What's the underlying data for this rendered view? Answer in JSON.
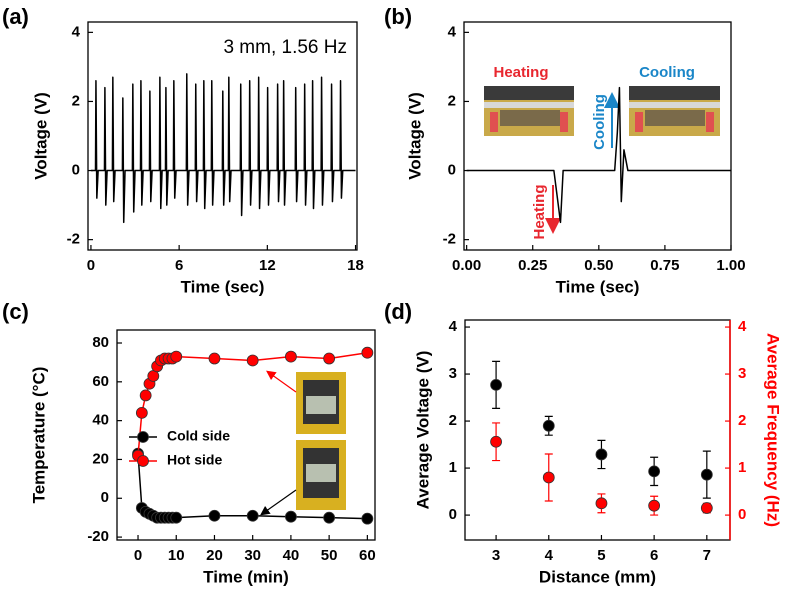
{
  "chart_data": [
    {
      "type": "line",
      "label": "(a)",
      "annotation": "3 mm, 1.56 Hz",
      "xlabel": "Time (sec)",
      "ylabel": "Voltage (V)",
      "color": "#000000",
      "x": [
        0,
        0.31,
        0.34,
        0.4,
        0.49,
        0.92,
        0.95,
        1.01,
        1.1,
        1.46,
        1.49,
        1.55,
        1.64,
        2.14,
        2.17,
        2.23,
        2.32,
        2.82,
        2.85,
        2.91,
        3.0,
        3.37,
        3.4,
        3.46,
        3.55,
        3.98,
        4.01,
        4.07,
        4.16,
        4.66,
        4.69,
        4.75,
        4.84,
        5.07,
        5.1,
        5.16,
        5.25,
        5.61,
        5.64,
        5.7,
        5.79,
        6.49,
        6.52,
        6.58,
        6.67,
        7.1,
        7.13,
        7.19,
        7.28,
        7.65,
        7.68,
        7.74,
        7.83,
        8.19,
        8.22,
        8.28,
        8.37,
        8.94,
        8.97,
        9.03,
        9.12,
        9.35,
        9.38,
        9.44,
        9.53,
        10.16,
        10.19,
        10.25,
        10.34,
        10.77,
        10.8,
        10.86,
        10.95,
        11.38,
        11.41,
        11.47,
        11.56,
        11.99,
        12.02,
        12.08,
        12.17,
        12.67,
        12.7,
        12.76,
        12.85,
        13.08,
        13.11,
        13.17,
        13.26,
        13.9,
        13.93,
        13.99,
        14.08,
        14.51,
        14.54,
        14.6,
        14.69,
        15.05,
        15.08,
        15.14,
        15.23,
        15.66,
        15.69,
        15.75,
        15.84,
        16.34,
        16.37,
        16.43,
        16.52,
        16.95,
        16.98,
        17.04,
        17.13,
        18
      ],
      "values": [
        0,
        0,
        2.6,
        -0.8,
        0,
        0,
        2.4,
        -1.0,
        0,
        0,
        2.7,
        -0.9,
        0,
        0,
        2.1,
        -1.5,
        0,
        0,
        2.5,
        -1.2,
        0,
        0,
        2.6,
        -1.0,
        0,
        0,
        2.3,
        -0.9,
        0,
        0,
        2.7,
        -1.1,
        0,
        0,
        2.4,
        -1.0,
        0,
        0,
        2.6,
        -0.8,
        0,
        0,
        2.8,
        -1.0,
        0,
        0,
        2.5,
        -0.9,
        0,
        0,
        2.6,
        -1.1,
        0,
        0,
        2.6,
        -1.0,
        0,
        0,
        2.3,
        -1.0,
        0,
        0,
        2.7,
        -0.9,
        0,
        0,
        2.5,
        -1.3,
        0,
        0,
        2.6,
        -1.0,
        0,
        0,
        2.7,
        -1.1,
        0,
        0,
        2.4,
        -1.0,
        0,
        0,
        2.5,
        -0.9,
        0,
        0,
        2.6,
        -1.0,
        0,
        0,
        2.4,
        -0.9,
        0,
        0,
        2.5,
        -1.0,
        0,
        0,
        2.6,
        -1.1,
        0,
        0,
        2.7,
        -1.0,
        0,
        0,
        2.5,
        -0.9,
        0,
        0,
        2.6,
        -0.8,
        0,
        0
      ],
      "xlim": [
        -0.2,
        18.1
      ],
      "xticks": [
        0,
        6,
        12,
        18
      ],
      "ylim": [
        -2.3,
        4.3
      ],
      "yticks": [
        -2,
        0,
        2,
        4
      ]
    },
    {
      "type": "line",
      "label": "(b)",
      "xlabel": "Time (sec)",
      "ylabel": "Voltage (V)",
      "color": "#000000",
      "x": [
        0,
        0.33,
        0.345,
        0.355,
        0.365,
        0.56,
        0.57,
        0.578,
        0.585,
        0.595,
        0.61,
        1.0
      ],
      "values": [
        0,
        0,
        -0.9,
        -1.5,
        0,
        0,
        1.1,
        2.4,
        -0.9,
        0.6,
        0,
        0
      ],
      "annotations": [
        {
          "text": "Heating",
          "color": "#e8272f"
        },
        {
          "text": "Cooling",
          "color": "#1a86c8"
        },
        {
          "text": "Cooling",
          "color": "#1a86c8"
        },
        {
          "text": "Heating",
          "color": "#e8272f"
        }
      ],
      "xlim": [
        -0.01,
        1.0
      ],
      "xticks": [
        {
          "value": 0,
          "label": "0.00"
        },
        {
          "value": 0.25,
          "label": "0.25"
        },
        {
          "value": 0.5,
          "label": "0.50"
        },
        {
          "value": 0.75,
          "label": "0.75"
        },
        {
          "value": 1,
          "label": "1.00"
        }
      ],
      "ylim": [
        -2.3,
        4.3
      ],
      "yticks": [
        -2,
        0,
        2,
        4
      ]
    },
    {
      "type": "line",
      "markers": true,
      "label": "(c)",
      "xlabel": "Time (min)",
      "ylabel": "Temperature (°C)",
      "legend": "center-left",
      "x": [
        0,
        1,
        2,
        3,
        4,
        5,
        6,
        7,
        8,
        9,
        10,
        20,
        30,
        40,
        50,
        60
      ],
      "series": [
        {
          "name": "Cold side",
          "color": "#000000",
          "values": [
            23,
            -5,
            -7,
            -8,
            -9,
            -10,
            -10,
            -10,
            -10,
            -10,
            -10,
            -9,
            -9,
            -9.5,
            -10,
            -10.5
          ]
        },
        {
          "name": "Hot side",
          "color": "#ff0000",
          "values": [
            22,
            44,
            53,
            59,
            63,
            68,
            71,
            72,
            72,
            72,
            73,
            72,
            71,
            73,
            72,
            75
          ]
        }
      ],
      "xlim": [
        -5.5,
        62
      ],
      "xticks": [
        0,
        10,
        20,
        30,
        40,
        50,
        60
      ],
      "ylim": [
        -21.5,
        86.7
      ],
      "yticks": [
        -20,
        0,
        20,
        40,
        60,
        80
      ]
    },
    {
      "type": "scatter",
      "label": "(d)",
      "xlabel": "Distance (mm)",
      "ylabel": "Average Voltage (V)",
      "y2label": "Average Frequency (Hz)",
      "x": [
        3,
        4,
        5,
        6,
        7
      ],
      "series": [
        {
          "name": "Average Voltage (V)",
          "color": "#000000",
          "values": [
            2.77,
            1.9,
            1.29,
            0.93,
            0.86
          ],
          "errors": [
            0.5,
            0.2,
            0.3,
            0.3,
            0.5
          ]
        },
        {
          "name": "Average Frequency (Hz)",
          "color": "#ff0000",
          "axis": "y2",
          "values": [
            1.56,
            0.8,
            0.25,
            0.2,
            0.15
          ],
          "errors": [
            0.4,
            0.5,
            0.2,
            0.2,
            0.1
          ]
        }
      ],
      "xlim": [
        2.41,
        7.44
      ],
      "xticks": [
        3,
        4,
        5,
        6,
        7
      ],
      "ylim": [
        -0.53,
        4.15
      ],
      "yticks": [
        0,
        1,
        2,
        3,
        4
      ],
      "y2lim": [
        -0.53,
        4.15
      ],
      "y2ticks": [
        0,
        1,
        2,
        3,
        4
      ]
    }
  ]
}
